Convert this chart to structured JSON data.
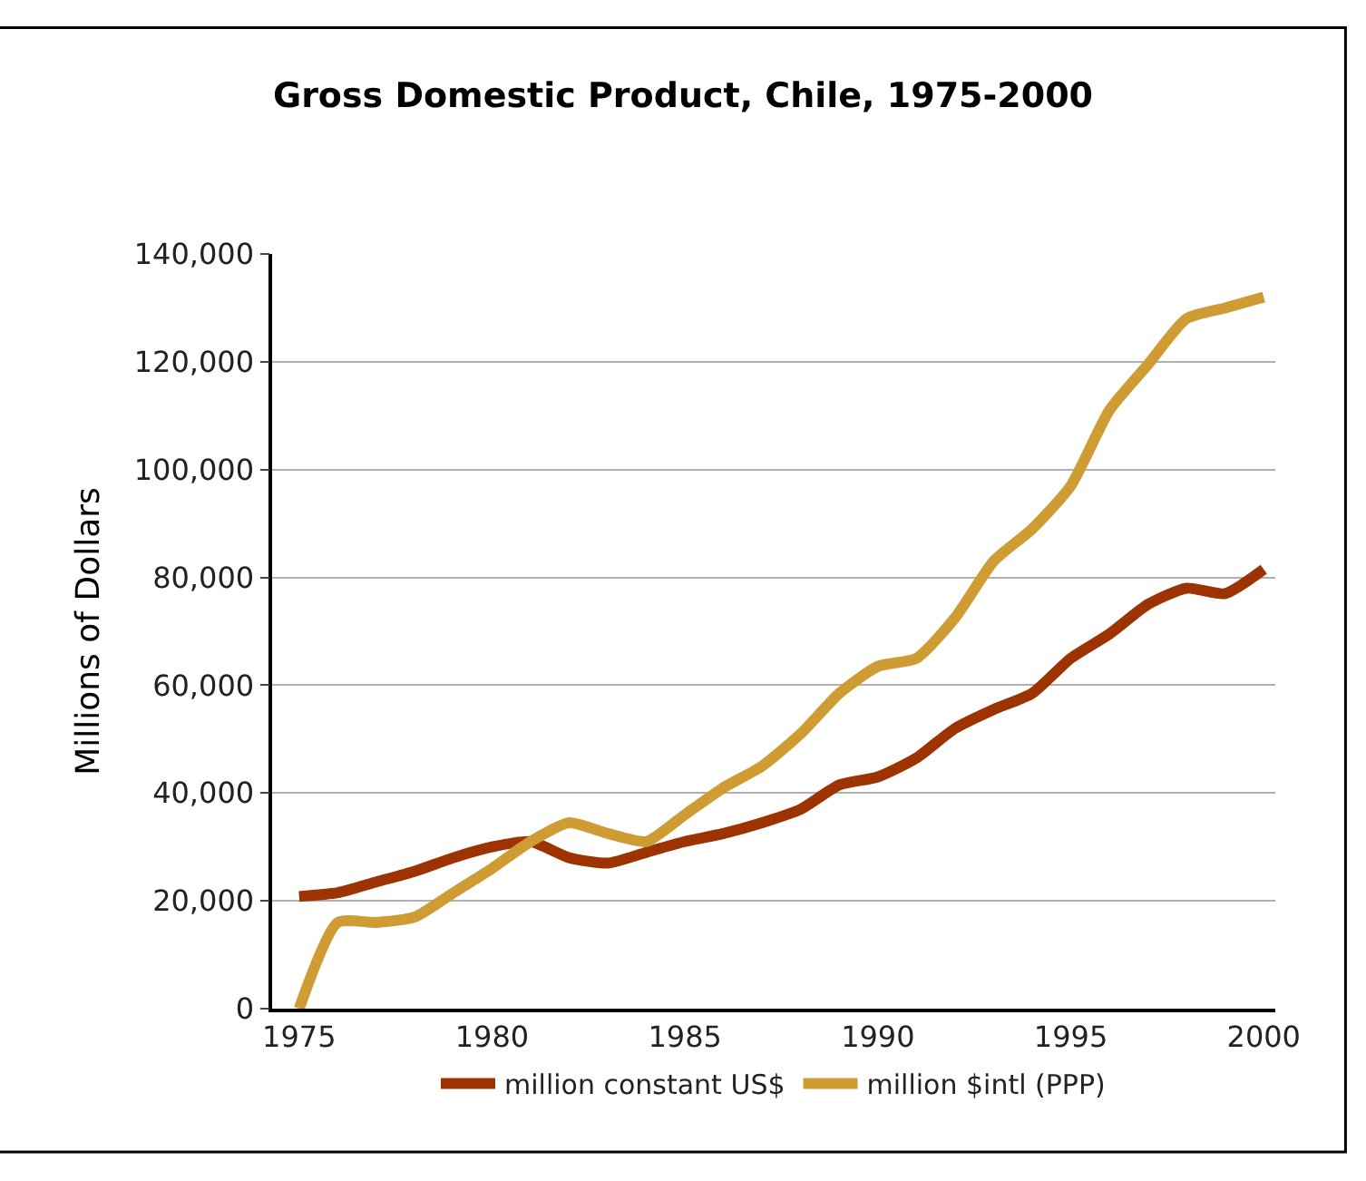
{
  "chart_data": {
    "type": "line",
    "title": "Gross Domestic Product, Chile, 1975-2000",
    "ylabel": "Millions of Dollars",
    "x": [
      1975,
      1976,
      1977,
      1978,
      1979,
      1980,
      1981,
      1982,
      1983,
      1984,
      1985,
      1986,
      1987,
      1988,
      1989,
      1990,
      1991,
      1992,
      1993,
      1994,
      1995,
      1996,
      1997,
      1998,
      1999,
      2000
    ],
    "series": [
      {
        "name": "million constant US$",
        "color": "#9c3300",
        "values": [
          20800,
          21500,
          23500,
          25500,
          28000,
          30000,
          31000,
          28000,
          27000,
          29000,
          31000,
          32500,
          34500,
          37000,
          41500,
          43000,
          46500,
          52000,
          55500,
          58500,
          65000,
          69500,
          75000,
          78000,
          77000,
          81500
        ]
      },
      {
        "name": "million $intl (PPP)",
        "color": "#cf9c33",
        "values": [
          0,
          16000,
          16000,
          17000,
          21500,
          26000,
          31000,
          34500,
          32500,
          31000,
          36000,
          41000,
          45000,
          51000,
          58500,
          63500,
          65000,
          72500,
          83000,
          89000,
          97000,
          111000,
          119500,
          128000,
          130000,
          132000
        ]
      }
    ],
    "xlim": [
      1974.3,
      2000.3
    ],
    "xticks": [
      1975,
      1980,
      1985,
      1990,
      1995,
      2000
    ],
    "ylim": [
      0,
      140000
    ],
    "yticks": [
      {
        "value": 0,
        "label": "0"
      },
      {
        "value": 20000,
        "label": "20,000"
      },
      {
        "value": 40000,
        "label": "40,000"
      },
      {
        "value": 60000,
        "label": "60,000"
      },
      {
        "value": 80000,
        "label": "80,000"
      },
      {
        "value": 100000,
        "label": "100,000"
      },
      {
        "value": 120000,
        "label": "120,000"
      },
      {
        "value": 140000,
        "label": "140,000"
      }
    ],
    "grid": "y",
    "legend": "bottom",
    "marker": "none",
    "line_style": "solid"
  }
}
